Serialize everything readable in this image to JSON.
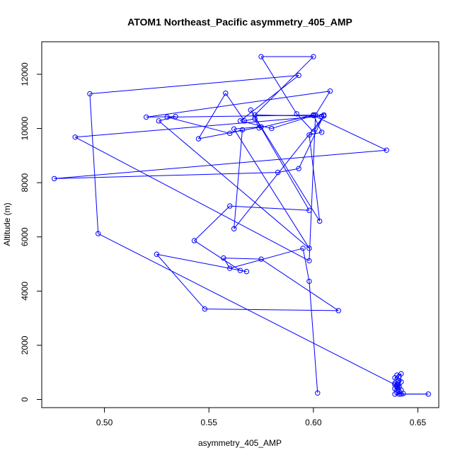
{
  "chart_data": {
    "type": "line",
    "title": "ATOM1 Northeast_Pacific asymmetry_405_AMP",
    "xlabel": "asymmetry_405_AMP",
    "ylabel": "Altitude (m)",
    "xlim": [
      0.47,
      0.66
    ],
    "ylim": [
      -300,
      13200
    ],
    "xticks": [
      0.5,
      0.55,
      0.6,
      0.65
    ],
    "xtick_labels": [
      "0.50",
      "0.55",
      "0.60",
      "0.65"
    ],
    "yticks": [
      0,
      2000,
      4000,
      6000,
      8000,
      10000,
      12000
    ],
    "ytick_labels": [
      "0",
      "2000",
      "4000",
      "6000",
      "8000",
      "10000",
      "12000"
    ],
    "color": "#0000ff",
    "markers": "open-circle",
    "grid": false,
    "legend": "none",
    "series": [
      {
        "x": [
          0.639,
          0.655,
          0.641,
          0.642,
          0.643,
          0.64,
          0.641,
          0.642,
          0.639,
          0.64,
          0.641,
          0.64,
          0.639,
          0.642,
          0.641,
          0.64,
          0.639,
          0.641,
          0.64,
          0.642,
          0.641,
          0.64,
          0.639,
          0.641,
          0.64,
          0.639,
          0.497,
          0.493,
          0.593,
          0.565,
          0.58,
          0.6,
          0.635,
          0.476,
          0.583,
          0.593,
          0.605,
          0.53,
          0.56,
          0.566,
          0.562,
          0.605,
          0.6,
          0.592,
          0.575,
          0.6,
          0.572,
          0.604,
          0.486,
          0.598,
          0.601,
          0.608,
          0.52,
          0.534,
          0.526,
          0.598,
          0.562,
          0.575,
          0.545,
          0.558,
          0.567,
          0.572,
          0.574,
          0.6,
          0.604,
          0.598,
          0.603,
          0.57,
          0.598,
          0.56,
          0.543,
          0.565,
          0.568,
          0.525,
          0.548,
          0.612,
          0.575,
          0.557,
          0.56,
          0.595,
          0.598,
          0.602
        ],
        "y": [
          200,
          200,
          200,
          200,
          220,
          250,
          300,
          350,
          400,
          450,
          500,
          550,
          600,
          650,
          700,
          750,
          800,
          850,
          900,
          950,
          300,
          350,
          400,
          450,
          500,
          550,
          6120,
          11280,
          11960,
          10280,
          10000,
          10480,
          9200,
          8150,
          8380,
          8520,
          10500,
          10420,
          9820,
          9950,
          6300,
          10460,
          9880,
          10540,
          12650,
          12650,
          10500,
          10450,
          9680,
          5120,
          10500,
          11380,
          10420,
          10440,
          10280,
          5580,
          9980,
          10060,
          9620,
          11300,
          10280,
          10360,
          10020,
          10500,
          9860,
          9760,
          6580,
          10680,
          6980,
          7140,
          5860,
          4760,
          4720,
          5360,
          3340,
          3280,
          5180,
          5220,
          4840,
          5580,
          4360,
          240
        ],
        "connections": "sequential-trajectory"
      }
    ]
  }
}
